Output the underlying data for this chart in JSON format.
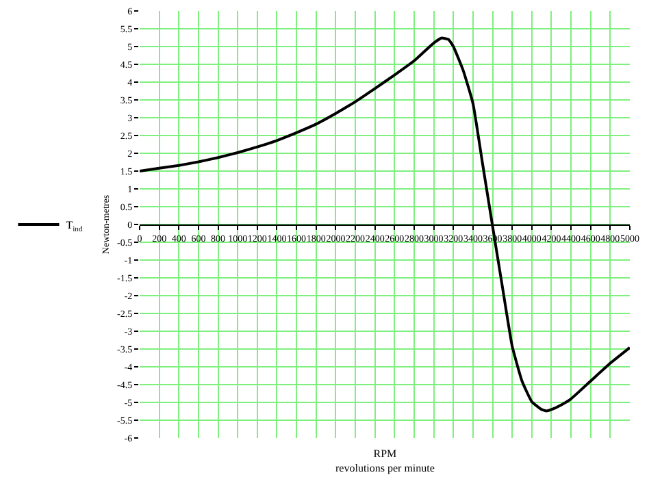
{
  "chart_data": {
    "type": "line",
    "xlabel": "RPM\nrevolutions per minute",
    "ylabel": "Newton-metres",
    "x": [
      0,
      200,
      400,
      600,
      800,
      1000,
      1200,
      1400,
      1600,
      1800,
      2000,
      2200,
      2400,
      2600,
      2800,
      2900,
      3000,
      3080,
      3150,
      3200,
      3300,
      3400,
      3500,
      3600,
      3700,
      3800,
      3900,
      4000,
      4100,
      4150,
      4200,
      4300,
      4400,
      4600,
      4800,
      5000
    ],
    "series": [
      {
        "name": "T$_{ind}$",
        "color": "#000000",
        "values": [
          1.5,
          1.58,
          1.66,
          1.76,
          1.88,
          2.02,
          2.18,
          2.36,
          2.58,
          2.82,
          3.12,
          3.45,
          3.82,
          4.2,
          4.6,
          4.85,
          5.1,
          5.24,
          5.2,
          5.0,
          4.33,
          3.4,
          1.67,
          -0.05,
          -1.75,
          -3.42,
          -4.4,
          -4.98,
          -5.2,
          -5.24,
          -5.2,
          -5.07,
          -4.9,
          -4.4,
          -3.9,
          -3.46
        ]
      }
    ],
    "xlim": [
      0,
      5000
    ],
    "xticks": [
      0,
      200,
      400,
      600,
      800,
      1000,
      1200,
      1400,
      1600,
      1800,
      2000,
      2200,
      2400,
      2600,
      2800,
      3000,
      3200,
      3400,
      3600,
      3800,
      4000,
      4200,
      4400,
      4600,
      4800,
      5000
    ],
    "ylim": [
      -6,
      6
    ],
    "yticks": [
      -6,
      -5.5,
      -5,
      -4.5,
      -4,
      -3.5,
      -3,
      -2.5,
      -2,
      -1.5,
      -1,
      -0.5,
      0,
      0.5,
      1,
      1.5,
      2,
      2.5,
      3,
      3.5,
      4,
      4.5,
      5,
      5.5,
      6
    ],
    "grid": true,
    "legend": "left",
    "marker": "none",
    "line_style": "solid"
  }
}
